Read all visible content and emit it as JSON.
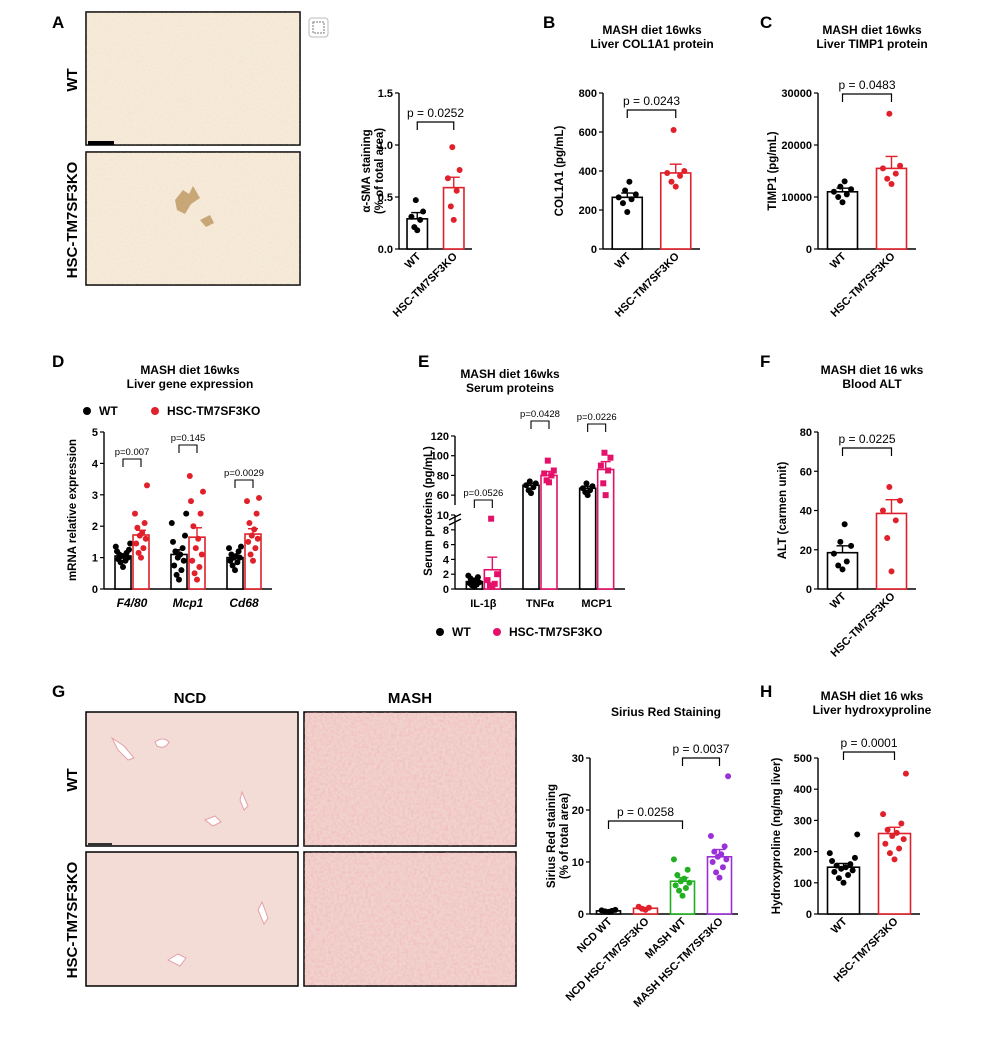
{
  "panel_letters": [
    "A",
    "B",
    "C",
    "D",
    "E",
    "F",
    "G",
    "H"
  ],
  "row_labels": {
    "wt": "WT",
    "ko": "HSC-TM7SF3KO"
  },
  "column_labels": {
    "ncd": "NCD",
    "mash": "MASH"
  },
  "colors": {
    "wt": "#000000",
    "ko": "#e0202a",
    "serum_ko": "#e5106a",
    "mash_wt": "#22b022",
    "mash_ko": "#9b30d9",
    "ihc_bg": "#f6ecdc",
    "stain_bg": "#f3dcd6"
  },
  "chart_data": [
    {
      "id": "A",
      "type": "bar",
      "title": "",
      "ylabel": "α-SMA staining\n(% of total area)",
      "ylim": [
        0,
        1.5
      ],
      "yticks": [
        "0.0",
        "0.5",
        "1.0",
        "1.5"
      ],
      "categories": [
        "WT",
        "HSC-TM7SF3KO"
      ],
      "means": [
        0.29,
        0.59
      ],
      "sem": [
        0.06,
        0.1
      ],
      "points": [
        [
          0.18,
          0.21,
          0.28,
          0.31,
          0.36,
          0.47
        ],
        [
          0.28,
          0.41,
          0.56,
          0.68,
          0.76,
          0.98
        ]
      ],
      "annotations": [
        {
          "text": "p = 0.0252",
          "pair": [
            0,
            1
          ]
        }
      ]
    },
    {
      "id": "B",
      "type": "bar",
      "title": "MASH diet 16wks\nLiver COL1A1 protein",
      "ylabel": "COL1A1 (pg/mL)",
      "ylim": [
        0,
        800
      ],
      "yticks": [
        "0",
        "200",
        "400",
        "600",
        "800"
      ],
      "categories": [
        "WT",
        "HSC-TM7SF3KO"
      ],
      "means": [
        265,
        390
      ],
      "sem": [
        22,
        45
      ],
      "points": [
        [
          190,
          235,
          255,
          265,
          280,
          300,
          345
        ],
        [
          320,
          345,
          375,
          390,
          400,
          610
        ]
      ],
      "annotations": [
        {
          "text": "p = 0.0243",
          "pair": [
            0,
            1
          ]
        }
      ]
    },
    {
      "id": "C",
      "type": "bar",
      "title": "MASH diet 16wks\nLiver TIMP1 protein",
      "ylabel": "TIMP1 (pg/mL)",
      "ylim": [
        0,
        30000
      ],
      "yticks": [
        "0",
        "10000",
        "20000",
        "30000"
      ],
      "categories": [
        "WT",
        "HSC-TM7SF3KO"
      ],
      "means": [
        11000,
        15500
      ],
      "sem": [
        700,
        2300
      ],
      "points": [
        [
          9000,
          10000,
          10500,
          11000,
          11500,
          12000,
          13000
        ],
        [
          12500,
          13500,
          14500,
          15500,
          16000,
          26000
        ]
      ],
      "annotations": [
        {
          "text": "p = 0.0483",
          "pair": [
            0,
            1
          ]
        }
      ]
    },
    {
      "id": "D",
      "type": "bar",
      "title": "MASH diet 16wks\nLiver gene expression",
      "ylabel": "mRNA relative expression",
      "ylim": [
        0,
        5
      ],
      "yticks": [
        "0",
        "1",
        "2",
        "3",
        "4",
        "5"
      ],
      "categories": [
        "F4/80",
        "Mcp1",
        "Cd68"
      ],
      "legend": [
        "WT",
        "HSC-TM7SF3KO"
      ],
      "series": [
        {
          "name": "WT",
          "means": [
            1.05,
            1.1,
            1.0
          ],
          "sem": [
            0.07,
            0.15,
            0.07
          ],
          "points": [
            [
              0.7,
              0.85,
              0.9,
              0.95,
              1.0,
              1.05,
              1.05,
              1.1,
              1.15,
              1.2,
              1.25,
              1.35,
              1.45
            ],
            [
              0.3,
              0.45,
              0.6,
              0.75,
              0.9,
              1.0,
              1.1,
              1.2,
              1.3,
              1.5,
              1.7,
              2.1,
              2.4
            ],
            [
              0.6,
              0.75,
              0.85,
              0.9,
              1.0,
              1.0,
              1.05,
              1.1,
              1.2,
              1.3,
              1.35
            ]
          ]
        },
        {
          "name": "HSC-TM7SF3KO",
          "means": [
            1.72,
            1.65,
            1.75
          ],
          "sem": [
            0.15,
            0.3,
            0.17
          ],
          "points": [
            [
              1.0,
              1.15,
              1.3,
              1.45,
              1.6,
              1.7,
              1.8,
              1.95,
              2.1,
              2.4,
              3.3
            ],
            [
              0.3,
              0.5,
              0.7,
              0.9,
              1.1,
              1.3,
              1.6,
              2.0,
              2.4,
              2.8,
              3.1,
              3.6
            ],
            [
              0.9,
              1.1,
              1.3,
              1.5,
              1.6,
              1.7,
              1.9,
              2.1,
              2.4,
              2.8,
              2.9
            ]
          ]
        }
      ],
      "annotations": [
        {
          "text": "p=0.007",
          "category": 0
        },
        {
          "text": "p=0.145",
          "category": 1
        },
        {
          "text": "p=0.0029",
          "category": 2
        }
      ]
    },
    {
      "id": "E",
      "type": "bar",
      "title": "MASH diet 16wks\nSerum proteins",
      "ylabel": "Serum proteins (pg/mL)",
      "axis_break": true,
      "lower_ylim": [
        0,
        10
      ],
      "lower_yticks": [
        "0",
        "2",
        "4",
        "6",
        "8",
        "10"
      ],
      "upper_ylim": [
        50,
        120
      ],
      "upper_yticks": [
        "60",
        "80",
        "100",
        "120"
      ],
      "categories": [
        "IL-1β",
        "TNFα",
        "MCP1"
      ],
      "legend": [
        "WT",
        "HSC-TM7SF3KO"
      ],
      "series": [
        {
          "name": "WT",
          "means": [
            1.0,
            70,
            67
          ],
          "sem": [
            0.2,
            2,
            2
          ],
          "points": [
            [
              0.3,
              0.5,
              0.6,
              0.8,
              0.9,
              1.0,
              1.2,
              1.4,
              1.6,
              1.8
            ],
            [
              62,
              65,
              68,
              70,
              72,
              74
            ],
            [
              60,
              63,
              65,
              67,
              69,
              72
            ]
          ]
        },
        {
          "name": "HSC-TM7SF3KO",
          "means": [
            2.6,
            80,
            86
          ],
          "sem": [
            1.7,
            4,
            8
          ],
          "points": [
            [
              0.3,
              0.5,
              0.7,
              1.2,
              2.0,
              9.5
            ],
            [
              73,
              75,
              80,
              82,
              85,
              95
            ],
            [
              60,
              72,
              85,
              90,
              98,
              103
            ]
          ]
        }
      ],
      "annotations": [
        {
          "text": "p=0.0526",
          "category": 0
        },
        {
          "text": "p=0.0428",
          "category": 1
        },
        {
          "text": "p=0.0226",
          "category": 2
        }
      ]
    },
    {
      "id": "F",
      "type": "bar",
      "title": "MASH diet 16 wks\nBlood ALT",
      "ylabel": "ALT (carmen unit)",
      "ylim": [
        0,
        80
      ],
      "yticks": [
        "0",
        "20",
        "40",
        "60",
        "80"
      ],
      "categories": [
        "WT",
        "HSC-TM7SF3KO"
      ],
      "means": [
        18.5,
        38.5
      ],
      "sem": [
        3.5,
        7
      ],
      "points": [
        [
          10,
          12,
          14,
          18,
          22,
          24,
          33
        ],
        [
          9,
          26,
          35,
          40,
          45,
          52
        ]
      ],
      "annotations": [
        {
          "text": "p = 0.0225",
          "pair": [
            0,
            1
          ]
        }
      ]
    },
    {
      "id": "G",
      "type": "bar",
      "title": "Sirius Red Staining",
      "ylabel": "Sirius Red staining\n(% of total area)",
      "ylim": [
        0,
        30
      ],
      "yticks": [
        "0",
        "10",
        "20",
        "30"
      ],
      "categories": [
        "NCD WT",
        "NCD HSC-TM7SF3KO",
        "MASH WT",
        "MASH HSC-TM7SF3KO"
      ],
      "means": [
        0.6,
        1.1,
        6.3,
        11.0
      ],
      "sem": [
        0.1,
        0.15,
        0.7,
        1.4
      ],
      "points": [
        [
          0.4,
          0.5,
          0.6,
          0.7,
          0.8
        ],
        [
          0.8,
          1.0,
          1.2,
          1.4
        ],
        [
          3.5,
          4.5,
          5.0,
          5.5,
          6.0,
          6.3,
          6.8,
          7.5,
          8.5,
          10.5
        ],
        [
          7.0,
          8.0,
          9.0,
          10.0,
          10.5,
          11.0,
          11.5,
          12.0,
          13.0,
          15.0,
          26.5
        ]
      ],
      "annotations": [
        {
          "text": "p = 0.0258",
          "pair": [
            0,
            2
          ]
        },
        {
          "text": "p = 0.0037",
          "pair": [
            2,
            3
          ]
        }
      ]
    },
    {
      "id": "H",
      "type": "bar",
      "title": "MASH diet 16 wks\nLiver hydroxyproline",
      "ylabel": "Hydroxyproline (ng/mg liver)",
      "ylim": [
        0,
        500
      ],
      "yticks": [
        "0",
        "100",
        "200",
        "300",
        "400",
        "500"
      ],
      "categories": [
        "WT",
        "HSC-TM7SF3KO"
      ],
      "means": [
        150,
        258
      ],
      "sem": [
        12,
        20
      ],
      "points": [
        [
          100,
          115,
          125,
          135,
          140,
          145,
          150,
          155,
          160,
          170,
          180,
          195,
          255
        ],
        [
          175,
          195,
          210,
          225,
          240,
          250,
          260,
          270,
          290,
          320,
          450
        ]
      ],
      "annotations": [
        {
          "text": "p = 0.0001",
          "pair": [
            0,
            1
          ]
        }
      ]
    }
  ]
}
